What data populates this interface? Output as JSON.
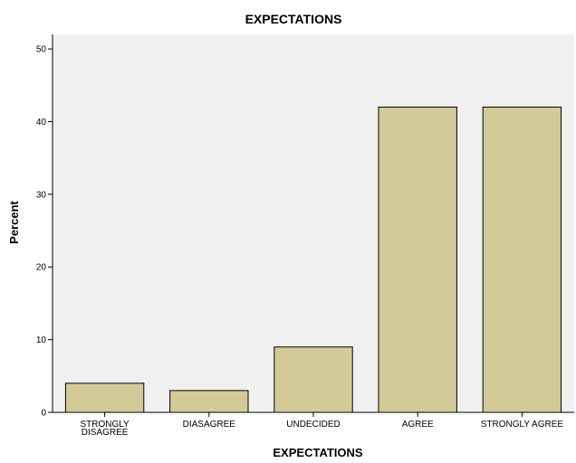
{
  "chart_data": {
    "type": "bar",
    "title": "EXPECTATIONS",
    "xlabel": "EXPECTATIONS",
    "ylabel": "Percent",
    "categories": [
      "STRONGLY DISAGREE",
      "DIASAGREE",
      "UNDECIDED",
      "AGREE",
      "STRONGLY AGREE"
    ],
    "category_label_lines": [
      [
        "STRONGLY",
        "DISAGREE"
      ],
      [
        "DIASAGREE"
      ],
      [
        "UNDECIDED"
      ],
      [
        "AGREE"
      ],
      [
        "STRONGLY AGREE"
      ]
    ],
    "values": [
      4,
      3,
      9,
      42,
      42
    ],
    "ylim": [
      0,
      52
    ],
    "yticks": [
      0,
      10,
      20,
      30,
      40,
      50
    ],
    "grid": false,
    "legend": "none",
    "colors": {
      "bar_fill": "#d2cb98",
      "bar_stroke": "#000000",
      "plot_background": "#f0f0f0",
      "axis": "#000000"
    }
  }
}
